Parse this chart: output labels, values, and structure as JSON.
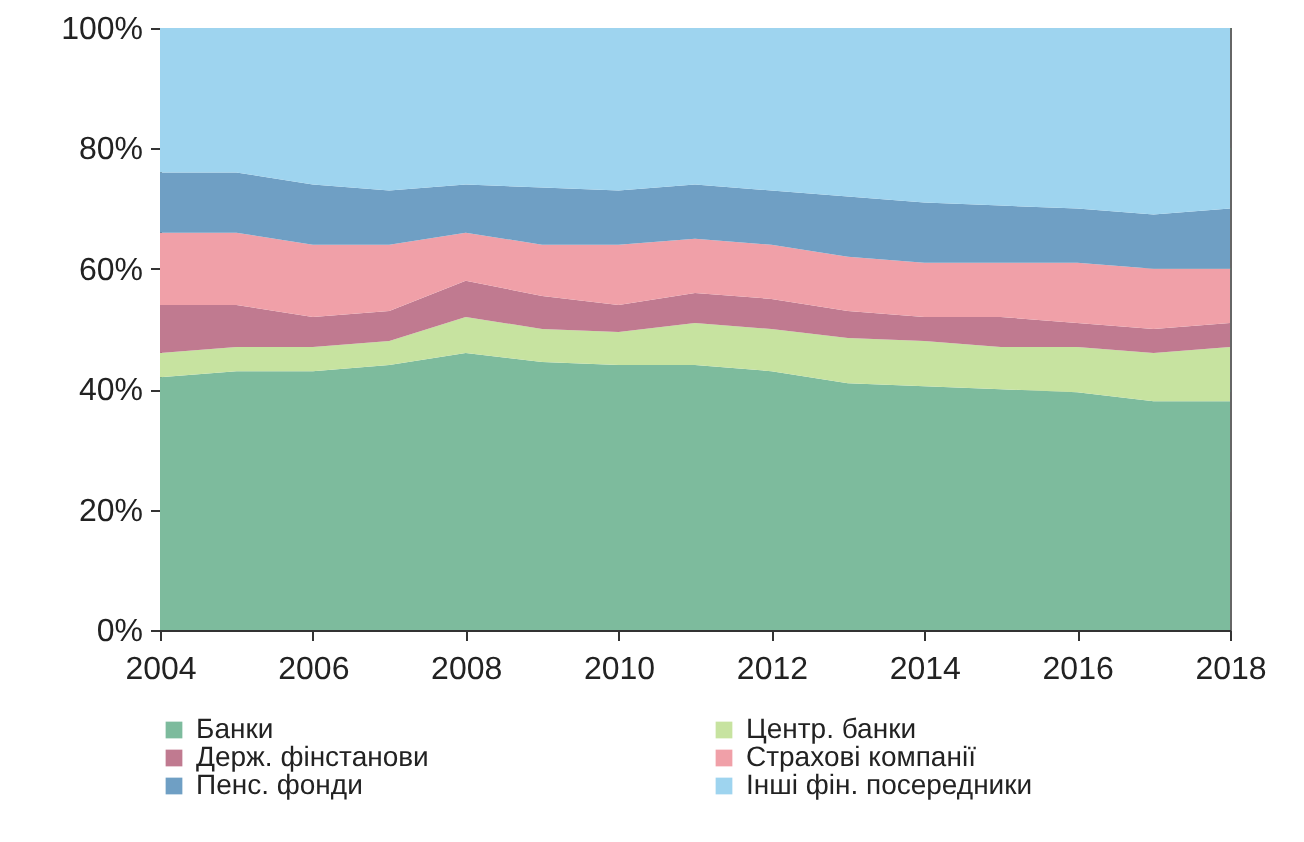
{
  "chart_data": {
    "type": "area",
    "stacked": true,
    "x": [
      2004,
      2005,
      2006,
      2007,
      2008,
      2009,
      2010,
      2011,
      2012,
      2013,
      2014,
      2015,
      2016,
      2017,
      2018
    ],
    "xlim": [
      2004,
      2018
    ],
    "xticks": [
      2004,
      2006,
      2008,
      2010,
      2012,
      2014,
      2016,
      2018
    ],
    "ylim": [
      0,
      100
    ],
    "yticks": [
      {
        "value": 0,
        "label": "0%"
      },
      {
        "value": 20,
        "label": "20%"
      },
      {
        "value": 40,
        "label": "40%"
      },
      {
        "value": 60,
        "label": "60%"
      },
      {
        "value": 80,
        "label": "80%"
      },
      {
        "value": 100,
        "label": "100%"
      }
    ],
    "grid": "y",
    "legend": "bottom",
    "series": [
      {
        "name": "Банки",
        "color": "#7dbb9d",
        "values": [
          42,
          43,
          43,
          44,
          46,
          44.5,
          44,
          44,
          43,
          41,
          40.5,
          40,
          39.5,
          38,
          38
        ]
      },
      {
        "name": "Центр. банки",
        "color": "#c7e3a0",
        "values": [
          4,
          4,
          4,
          4,
          6,
          5.5,
          5.5,
          7,
          7,
          7.5,
          7.5,
          7,
          7.5,
          8,
          9
        ]
      },
      {
        "name": "Держ. фінстанови",
        "color": "#c07a90",
        "values": [
          8,
          7,
          5,
          5,
          6,
          5.5,
          4.5,
          5,
          5,
          4.5,
          4,
          5,
          4,
          4,
          4
        ]
      },
      {
        "name": "Страхові компанії",
        "color": "#f0a0a8",
        "values": [
          12,
          12,
          12,
          11,
          8,
          8.5,
          10,
          9,
          9,
          9,
          9,
          9,
          10,
          10,
          9
        ]
      },
      {
        "name": "Пенс. фонди",
        "color": "#6f9fc4",
        "values": [
          10,
          10,
          10,
          9,
          8,
          9.5,
          9,
          9,
          9,
          10,
          10,
          9.5,
          9,
          9,
          10
        ]
      },
      {
        "name": "Інші  фін. посередники",
        "color": "#9ed4ef",
        "values": [
          24,
          24,
          26,
          27,
          26,
          26.5,
          27,
          26,
          27,
          28,
          29,
          29.5,
          30,
          31,
          30
        ]
      }
    ]
  }
}
